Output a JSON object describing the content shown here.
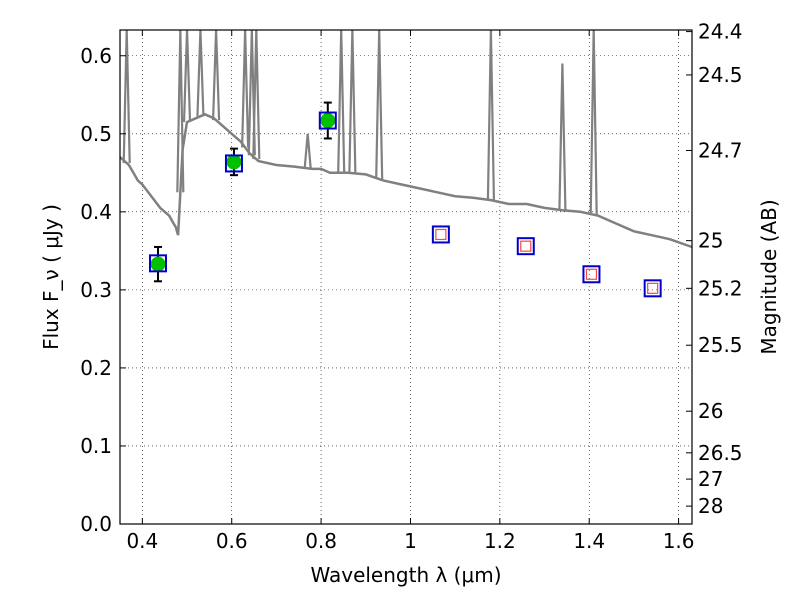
{
  "chart_data": {
    "type": "scatter",
    "xlabel": "Wavelength  λ (μm)",
    "ylabel": "Flux  F_ν  ( μJy )",
    "y2label": "Magnitude (AB)",
    "xlim": [
      0.35,
      1.63
    ],
    "ylim": [
      0.0,
      0.633
    ],
    "grid": true,
    "x_ticks": [
      0.4,
      0.6,
      0.8,
      1.0,
      1.2,
      1.4,
      1.6
    ],
    "x_tick_labels": [
      "0.4",
      "0.6",
      "0.8",
      "1",
      "1.2",
      "1.4",
      "1.6"
    ],
    "y_ticks": [
      0.0,
      0.1,
      0.2,
      0.3,
      0.4,
      0.5,
      0.6
    ],
    "y_tick_labels": [
      "0.0",
      "0.1",
      "0.2",
      "0.3",
      "0.4",
      "0.5",
      "0.6"
    ],
    "y2_ticks": [
      {
        "mag": 24.4,
        "label": "24.4"
      },
      {
        "mag": 24.5,
        "label": "24.5"
      },
      {
        "mag": 24.7,
        "label": "24.7"
      },
      {
        "mag": 25.0,
        "label": "25"
      },
      {
        "mag": 25.2,
        "label": "25.2"
      },
      {
        "mag": 25.5,
        "label": "25.5"
      },
      {
        "mag": 26.0,
        "label": "26"
      },
      {
        "mag": 26.5,
        "label": "26.5"
      },
      {
        "mag": 27.0,
        "label": "27"
      },
      {
        "mag": 28.0,
        "label": "28"
      }
    ],
    "series": [
      {
        "kind": "line",
        "color": "#808080",
        "x": [
          0.35,
          0.36,
          0.37,
          0.38,
          0.39,
          0.4,
          0.42,
          0.44,
          0.46,
          0.47,
          0.475,
          0.48,
          0.49,
          0.5,
          0.52,
          0.54,
          0.56,
          0.58,
          0.6,
          0.62,
          0.64,
          0.66,
          0.7,
          0.74,
          0.78,
          0.8,
          0.82,
          0.86,
          0.9,
          0.94,
          0.98,
          1.02,
          1.06,
          1.1,
          1.14,
          1.18,
          1.22,
          1.26,
          1.3,
          1.34,
          1.38,
          1.42,
          1.46,
          1.5,
          1.54,
          1.58,
          1.63
        ],
        "y": [
          0.47,
          0.465,
          0.46,
          0.45,
          0.44,
          0.435,
          0.42,
          0.405,
          0.395,
          0.385,
          0.38,
          0.37,
          0.48,
          0.515,
          0.52,
          0.525,
          0.52,
          0.51,
          0.5,
          0.49,
          0.475,
          0.465,
          0.46,
          0.458,
          0.455,
          0.455,
          0.45,
          0.45,
          0.448,
          0.44,
          0.435,
          0.43,
          0.425,
          0.42,
          0.418,
          0.415,
          0.41,
          0.41,
          0.405,
          0.402,
          0.4,
          0.395,
          0.385,
          0.375,
          0.37,
          0.365,
          0.355
        ]
      },
      {
        "kind": "emission-lines",
        "color": "#808080",
        "lines": [
          {
            "x": 0.365,
            "peak": 0.633
          },
          {
            "x": 0.485,
            "peak": 0.633
          },
          {
            "x": 0.5,
            "peak": 0.633
          },
          {
            "x": 0.53,
            "peak": 0.633
          },
          {
            "x": 0.565,
            "peak": 0.633
          },
          {
            "x": 0.63,
            "peak": 0.633
          },
          {
            "x": 0.645,
            "peak": 0.633
          },
          {
            "x": 0.655,
            "peak": 0.633
          },
          {
            "x": 0.77,
            "peak": 0.5
          },
          {
            "x": 0.845,
            "peak": 0.633
          },
          {
            "x": 0.87,
            "peak": 0.633
          },
          {
            "x": 0.93,
            "peak": 0.633
          },
          {
            "x": 1.18,
            "peak": 0.633
          },
          {
            "x": 1.34,
            "peak": 0.59
          },
          {
            "x": 1.41,
            "peak": 0.633
          }
        ]
      },
      {
        "kind": "points",
        "marker": "circle",
        "color": "#00c000",
        "x": [
          0.435,
          0.605,
          0.815
        ],
        "y": [
          0.333,
          0.464,
          0.517
        ],
        "yerr": [
          0.022,
          0.017,
          0.023
        ]
      },
      {
        "kind": "points",
        "marker": "square-open",
        "color": "#0000cc",
        "x": [
          0.435,
          0.605,
          0.815,
          1.068,
          1.258,
          1.405,
          1.542
        ],
        "y": [
          0.334,
          0.462,
          0.517,
          0.371,
          0.356,
          0.32,
          0.302
        ]
      },
      {
        "kind": "points",
        "marker": "square-open-small",
        "color": "#ff4444",
        "x": [
          1.068,
          1.258,
          1.405,
          1.542
        ],
        "y": [
          0.371,
          0.356,
          0.32,
          0.302
        ]
      }
    ]
  }
}
